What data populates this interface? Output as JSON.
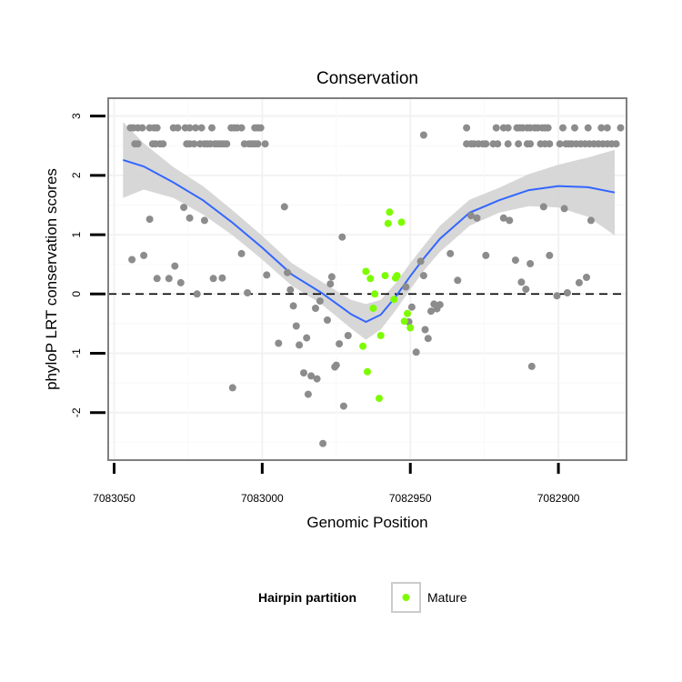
{
  "chart_data": {
    "type": "scatter",
    "title": "Conservation",
    "xlabel": "Genomic Position",
    "ylabel": "phyloP LRT conservation scores",
    "xlim": [
      7083052,
      7082877
    ],
    "ylim": [
      -2.8,
      3.3
    ],
    "x_reversed": true,
    "x_ticks": [
      7083050,
      7083000,
      7082950,
      7082900
    ],
    "x_tick_labels": [
      "7083050",
      "7083000",
      "7082950",
      "7082900"
    ],
    "y_ticks": [
      3,
      2,
      1,
      0,
      -1,
      -2
    ],
    "y_tick_labels": [
      "3",
      "2",
      "1",
      "0",
      "-1",
      "-2"
    ],
    "reference_line": {
      "y": 0,
      "style": "dashed"
    },
    "legend": {
      "title": "Hairpin partition",
      "entries": [
        {
          "label": "Mature",
          "color": "#7cfc00"
        }
      ],
      "placement": "bottom"
    },
    "colors": {
      "other": "#8c8c8c",
      "mature": "#7cfc00",
      "smooth": "#3366ff",
      "ribbon": "#d3d3d3",
      "frame": "#7f7f7f"
    },
    "series": [
      {
        "name": "Other",
        "points": [
          [
            7083044.5,
            2.8
          ],
          [
            7083043.5,
            2.8
          ],
          [
            7083042.0,
            2.8
          ],
          [
            7083040.5,
            2.8
          ],
          [
            7083038.0,
            2.8
          ],
          [
            7083036.5,
            2.8
          ],
          [
            7083035.5,
            2.8
          ],
          [
            7083030.0,
            2.8
          ],
          [
            7083028.5,
            2.8
          ],
          [
            7083026.0,
            2.8
          ],
          [
            7083024.5,
            2.8
          ],
          [
            7083022.5,
            2.8
          ],
          [
            7083020.5,
            2.8
          ],
          [
            7083017.0,
            2.8
          ],
          [
            7083010.5,
            2.8
          ],
          [
            7083009.5,
            2.8
          ],
          [
            7083008.5,
            2.8
          ],
          [
            7083007.0,
            2.8
          ],
          [
            7083002.5,
            2.8
          ],
          [
            7083001.5,
            2.8
          ],
          [
            7083000.5,
            2.8
          ],
          [
            7083043.0,
            2.53
          ],
          [
            7083042.0,
            2.53
          ],
          [
            7083037.0,
            2.53
          ],
          [
            7083036.0,
            2.53
          ],
          [
            7083034.5,
            2.53
          ],
          [
            7083033.5,
            2.53
          ],
          [
            7083025.5,
            2.53
          ],
          [
            7083024.5,
            2.53
          ],
          [
            7083023.0,
            2.53
          ],
          [
            7083021.0,
            2.53
          ],
          [
            7083019.5,
            2.53
          ],
          [
            7083018.5,
            2.53
          ],
          [
            7083017.5,
            2.53
          ],
          [
            7083016.0,
            2.53
          ],
          [
            7083015.0,
            2.53
          ],
          [
            7083014.0,
            2.53
          ],
          [
            7083013.0,
            2.53
          ],
          [
            7083012.0,
            2.53
          ],
          [
            7083006.0,
            2.53
          ],
          [
            7083004.5,
            2.53
          ],
          [
            7083003.5,
            2.53
          ],
          [
            7083002.5,
            2.53
          ],
          [
            7083001.5,
            2.53
          ],
          [
            7082999.0,
            2.53
          ],
          [
            7082945.5,
            2.68
          ],
          [
            7082931.0,
            2.8
          ],
          [
            7082921.0,
            2.8
          ],
          [
            7082918.5,
            2.8
          ],
          [
            7082917.0,
            2.8
          ],
          [
            7082914.0,
            2.8
          ],
          [
            7082913.0,
            2.8
          ],
          [
            7082912.0,
            2.8
          ],
          [
            7082910.5,
            2.8
          ],
          [
            7082909.5,
            2.8
          ],
          [
            7082908.0,
            2.8
          ],
          [
            7082907.0,
            2.8
          ],
          [
            7082905.5,
            2.8
          ],
          [
            7082904.5,
            2.8
          ],
          [
            7082903.5,
            2.8
          ],
          [
            7082898.5,
            2.8
          ],
          [
            7082894.5,
            2.8
          ],
          [
            7082890.0,
            2.8
          ],
          [
            7082885.5,
            2.8
          ],
          [
            7082883.5,
            2.8
          ],
          [
            7082879.0,
            2.8
          ],
          [
            7082931.0,
            2.53
          ],
          [
            7082929.5,
            2.53
          ],
          [
            7082928.5,
            2.53
          ],
          [
            7082927.0,
            2.53
          ],
          [
            7082925.5,
            2.53
          ],
          [
            7082924.5,
            2.53
          ],
          [
            7082922.0,
            2.53
          ],
          [
            7082920.5,
            2.53
          ],
          [
            7082917.0,
            2.53
          ],
          [
            7082913.5,
            2.53
          ],
          [
            7082910.5,
            2.53
          ],
          [
            7082909.5,
            2.53
          ],
          [
            7082906.0,
            2.53
          ],
          [
            7082904.5,
            2.53
          ],
          [
            7082903.0,
            2.53
          ],
          [
            7082899.5,
            2.53
          ],
          [
            7082897.5,
            2.53
          ],
          [
            7082896.5,
            2.53
          ],
          [
            7082895.5,
            2.53
          ],
          [
            7082894.0,
            2.53
          ],
          [
            7082892.5,
            2.53
          ],
          [
            7082891.0,
            2.53
          ],
          [
            7082889.5,
            2.53
          ],
          [
            7082888.0,
            2.53
          ],
          [
            7082886.5,
            2.53
          ],
          [
            7082885.0,
            2.53
          ],
          [
            7082883.5,
            2.53
          ],
          [
            7082882.0,
            2.53
          ],
          [
            7082880.5,
            2.53
          ],
          [
            7083044.0,
            0.58
          ],
          [
            7083040.0,
            0.65
          ],
          [
            7083038.0,
            1.26
          ],
          [
            7083035.5,
            0.26
          ],
          [
            7083031.5,
            0.26
          ],
          [
            7083029.5,
            0.47
          ],
          [
            7083027.5,
            0.19
          ],
          [
            7083026.5,
            1.46
          ],
          [
            7083024.5,
            1.28
          ],
          [
            7083022.0,
            0.0
          ],
          [
            7083019.5,
            1.24
          ],
          [
            7083016.5,
            0.26
          ],
          [
            7083013.5,
            0.27
          ],
          [
            7083010.0,
            -1.58
          ],
          [
            7083007.0,
            0.68
          ],
          [
            7083005.0,
            0.02
          ],
          [
            7082998.5,
            0.32
          ],
          [
            7082994.5,
            -0.83
          ],
          [
            7082992.5,
            1.47
          ],
          [
            7082991.5,
            0.36
          ],
          [
            7082990.5,
            0.07
          ],
          [
            7082989.5,
            -0.2
          ],
          [
            7082988.5,
            -0.54
          ],
          [
            7082987.5,
            -0.86
          ],
          [
            7082986.0,
            -1.33
          ],
          [
            7082985.0,
            -0.74
          ],
          [
            7082984.5,
            -1.69
          ],
          [
            7082983.5,
            -1.38
          ],
          [
            7082981.5,
            -1.43
          ],
          [
            7082982.0,
            -0.24
          ],
          [
            7082980.5,
            -0.12
          ],
          [
            7082979.5,
            -2.52
          ],
          [
            7082977.0,
            0.17
          ],
          [
            7082978.0,
            -0.44
          ],
          [
            7082976.5,
            0.29
          ],
          [
            7082975.5,
            -1.23
          ],
          [
            7082975.0,
            -1.2
          ],
          [
            7082974.0,
            -0.84
          ],
          [
            7082973.0,
            0.96
          ],
          [
            7082972.5,
            -1.89
          ],
          [
            7082971.0,
            -0.7
          ],
          [
            7082951.5,
            0.12
          ],
          [
            7082950.5,
            -0.47
          ],
          [
            7082949.5,
            -0.22
          ],
          [
            7082948.0,
            -0.98
          ],
          [
            7082946.5,
            0.55
          ],
          [
            7082945.5,
            0.31
          ],
          [
            7082945.0,
            -0.6
          ],
          [
            7082944.0,
            -0.75
          ],
          [
            7082943.0,
            -0.29
          ],
          [
            7082942.0,
            -0.17
          ],
          [
            7082941.0,
            -0.25
          ],
          [
            7082940.0,
            -0.18
          ],
          [
            7082936.5,
            0.68
          ],
          [
            7082934.0,
            0.23
          ],
          [
            7082929.5,
            1.32
          ],
          [
            7082927.5,
            1.28
          ],
          [
            7082924.5,
            0.65
          ],
          [
            7082918.5,
            1.28
          ],
          [
            7082916.5,
            1.24
          ],
          [
            7082914.5,
            0.57
          ],
          [
            7082912.5,
            0.2
          ],
          [
            7082911.0,
            0.08
          ],
          [
            7082909.5,
            0.51
          ],
          [
            7082909.0,
            -1.22
          ],
          [
            7082905.0,
            1.47
          ],
          [
            7082903.0,
            0.65
          ],
          [
            7082900.5,
            -0.03
          ],
          [
            7082898.0,
            1.44
          ],
          [
            7082897.0,
            0.02
          ],
          [
            7082893.0,
            0.19
          ],
          [
            7082890.5,
            0.28
          ],
          [
            7082889.0,
            1.24
          ]
        ]
      },
      {
        "name": "Mature",
        "points": [
          [
            7082965.0,
            0.38
          ],
          [
            7082963.5,
            0.26
          ],
          [
            7082962.0,
            0.0
          ],
          [
            7082962.5,
            -0.24
          ],
          [
            7082966.0,
            -0.88
          ],
          [
            7082964.5,
            -1.31
          ],
          [
            7082960.5,
            -1.76
          ],
          [
            7082960.0,
            -0.7
          ],
          [
            7082958.5,
            0.31
          ],
          [
            7082957.5,
            1.19
          ],
          [
            7082957.0,
            1.38
          ],
          [
            7082955.5,
            -0.09
          ],
          [
            7082955.0,
            0.27
          ],
          [
            7082954.5,
            0.31
          ],
          [
            7082953.0,
            1.21
          ],
          [
            7082952.0,
            -0.46
          ],
          [
            7082951.0,
            -0.33
          ],
          [
            7082950.0,
            -0.57
          ]
        ]
      }
    ],
    "smooth": {
      "x": [
        7083047,
        7083040,
        7083030,
        7083020,
        7083010,
        7083000,
        7082990,
        7082980,
        7082970,
        7082965,
        7082960,
        7082955,
        7082950,
        7082945,
        7082940,
        7082930,
        7082920,
        7082910,
        7082900,
        7082890,
        7082881
      ],
      "y": [
        2.26,
        2.15,
        1.88,
        1.58,
        1.2,
        0.78,
        0.33,
        0.02,
        -0.34,
        -0.47,
        -0.35,
        -0.05,
        0.3,
        0.63,
        0.93,
        1.37,
        1.58,
        1.75,
        1.82,
        1.8,
        1.71
      ],
      "lower": [
        1.62,
        1.76,
        1.62,
        1.34,
        0.99,
        0.58,
        0.14,
        -0.17,
        -0.58,
        -0.77,
        -0.6,
        -0.28,
        0.08,
        0.42,
        0.71,
        1.15,
        1.37,
        1.48,
        1.46,
        1.3,
        0.99
      ],
      "upper": [
        2.9,
        2.54,
        2.14,
        1.82,
        1.41,
        0.98,
        0.52,
        0.21,
        -0.1,
        -0.17,
        -0.1,
        0.18,
        0.52,
        0.84,
        1.15,
        1.59,
        1.79,
        2.02,
        2.18,
        2.3,
        2.43
      ]
    }
  }
}
